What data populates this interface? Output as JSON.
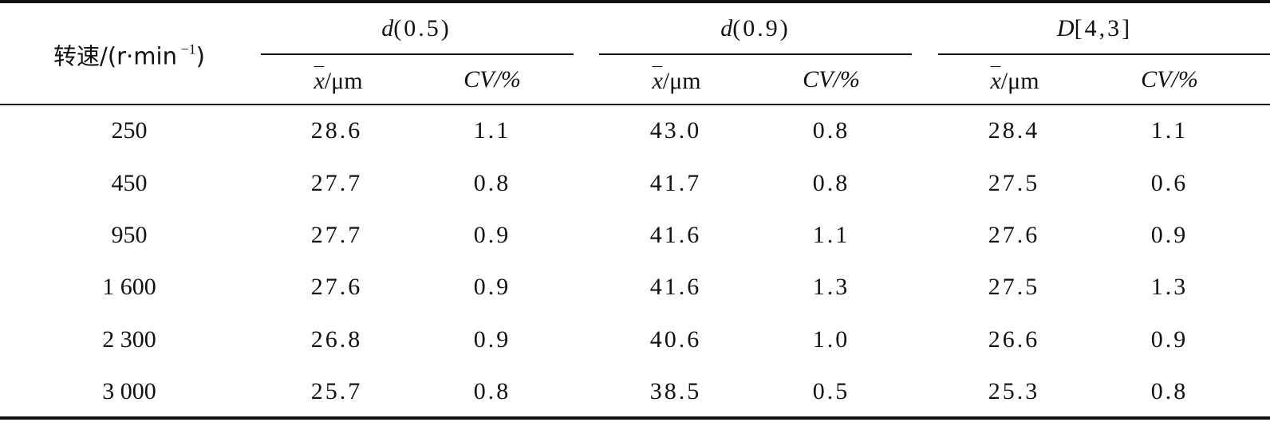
{
  "table": {
    "row_header": {
      "prefix": "转速/(r·min",
      "exp": " −1",
      "suffix": ")"
    },
    "groups": [
      {
        "func": "d",
        "arg": "(0.5)"
      },
      {
        "func": "d",
        "arg": "(0.9)"
      },
      {
        "func": "D",
        "arg": "[4,3]"
      }
    ],
    "subheaders": {
      "mean_var": "x",
      "mean_unit": "/μm",
      "cv": "CV/%"
    },
    "rows": [
      {
        "speed": "250",
        "d05_mean": "28.6",
        "d05_cv": "1.1",
        "d09_mean": "43.0",
        "d09_cv": "0.8",
        "d43_mean": "28.4",
        "d43_cv": "1.1"
      },
      {
        "speed": "450",
        "d05_mean": "27.7",
        "d05_cv": "0.8",
        "d09_mean": "41.7",
        "d09_cv": "0.8",
        "d43_mean": "27.5",
        "d43_cv": "0.6"
      },
      {
        "speed": "950",
        "d05_mean": "27.7",
        "d05_cv": "0.9",
        "d09_mean": "41.6",
        "d09_cv": "1.1",
        "d43_mean": "27.6",
        "d43_cv": "0.9"
      },
      {
        "speed": "1 600",
        "d05_mean": "27.6",
        "d05_cv": "0.9",
        "d09_mean": "41.6",
        "d09_cv": "1.3",
        "d43_mean": "27.5",
        "d43_cv": "1.3"
      },
      {
        "speed": "2 300",
        "d05_mean": "26.8",
        "d05_cv": "0.9",
        "d09_mean": "40.6",
        "d09_cv": "1.0",
        "d43_mean": "26.6",
        "d43_cv": "0.9"
      },
      {
        "speed": "3 000",
        "d05_mean": "25.7",
        "d05_cv": "0.8",
        "d09_mean": "38.5",
        "d09_cv": "0.5",
        "d43_mean": "25.3",
        "d43_cv": "0.8"
      }
    ]
  }
}
